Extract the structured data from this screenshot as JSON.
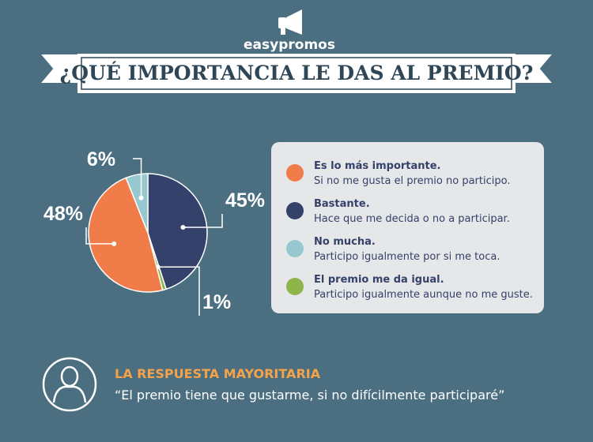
{
  "logo": "easypromos",
  "chart_data": {
    "type": "pie",
    "title": "¿QUÉ IMPORTANCIA LE DAS AL PREMIO?",
    "values": [
      45,
      1,
      48,
      6
    ],
    "value_labels": [
      "45%",
      "1%",
      "48%",
      "6%"
    ],
    "colors": [
      "#34416b",
      "#8db54a",
      "#f07c4a",
      "#97c8d0"
    ],
    "legend": [
      {
        "title": "Es lo más importante.",
        "detail": "Si no me gusta el premio no participo.",
        "color": "#f07c4a"
      },
      {
        "title": "Bastante.",
        "detail": "Hace que me decida o no a participar.",
        "color": "#34416b"
      },
      {
        "title": "No mucha.",
        "detail": "Participo igualmente por si me toca.",
        "color": "#97c8d0"
      },
      {
        "title": "El premio me da igual.",
        "detail": "Participo igualmente aunque no me guste.",
        "color": "#8db54a"
      }
    ]
  },
  "footer": {
    "heading": "LA RESPUESTA MAYORITARIA",
    "quote": "“El premio tiene que gustarme, si no difícilmente participaré”"
  }
}
